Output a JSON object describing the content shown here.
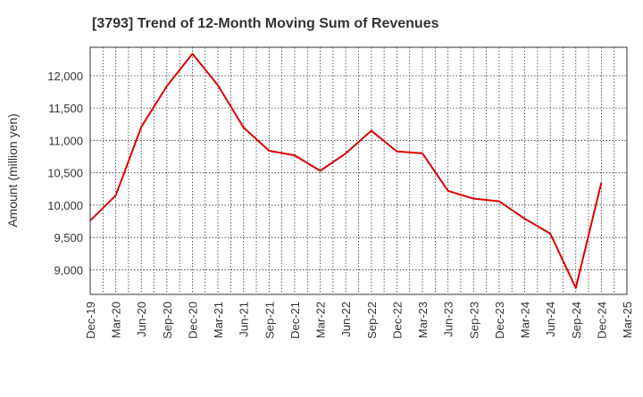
{
  "chart_data": {
    "type": "line",
    "title": "[3793]  Trend of 12-Month Moving Sum of Revenues",
    "xlabel": "",
    "ylabel": "Amount (million yen)",
    "x_tick_labels": [
      "Dec-19",
      "Mar-20",
      "Jun-20",
      "Sep-20",
      "Dec-20",
      "Mar-21",
      "Jun-21",
      "Sep-21",
      "Dec-21",
      "Mar-22",
      "Jun-22",
      "Sep-22",
      "Dec-22",
      "Mar-23",
      "Jun-23",
      "Sep-23",
      "Dec-23",
      "Mar-24",
      "Jun-24",
      "Sep-24",
      "Dec-24",
      "Mar-25"
    ],
    "y_ticks": [
      9000,
      9500,
      10000,
      10500,
      11000,
      11500,
      12000
    ],
    "ylim": [
      8620,
      12440
    ],
    "grid": true,
    "legend": "none",
    "series": [
      {
        "color": "#dd0000",
        "x": [
          "Dec-19",
          "Mar-20",
          "Jun-20",
          "Sep-20",
          "Dec-20",
          "Mar-21",
          "Jun-21",
          "Sep-21",
          "Dec-21",
          "Mar-22",
          "Jun-22",
          "Sep-22",
          "Dec-22",
          "Mar-23",
          "Jun-23",
          "Sep-23",
          "Dec-23",
          "Mar-24",
          "Jun-24",
          "Sep-24",
          "Dec-24"
        ],
        "values": [
          9760,
          10150,
          11210,
          11840,
          12340,
          11850,
          11200,
          10840,
          10770,
          10530,
          10800,
          11150,
          10830,
          10800,
          10220,
          10100,
          10060,
          9790,
          9560,
          8720,
          10350
        ]
      }
    ]
  }
}
